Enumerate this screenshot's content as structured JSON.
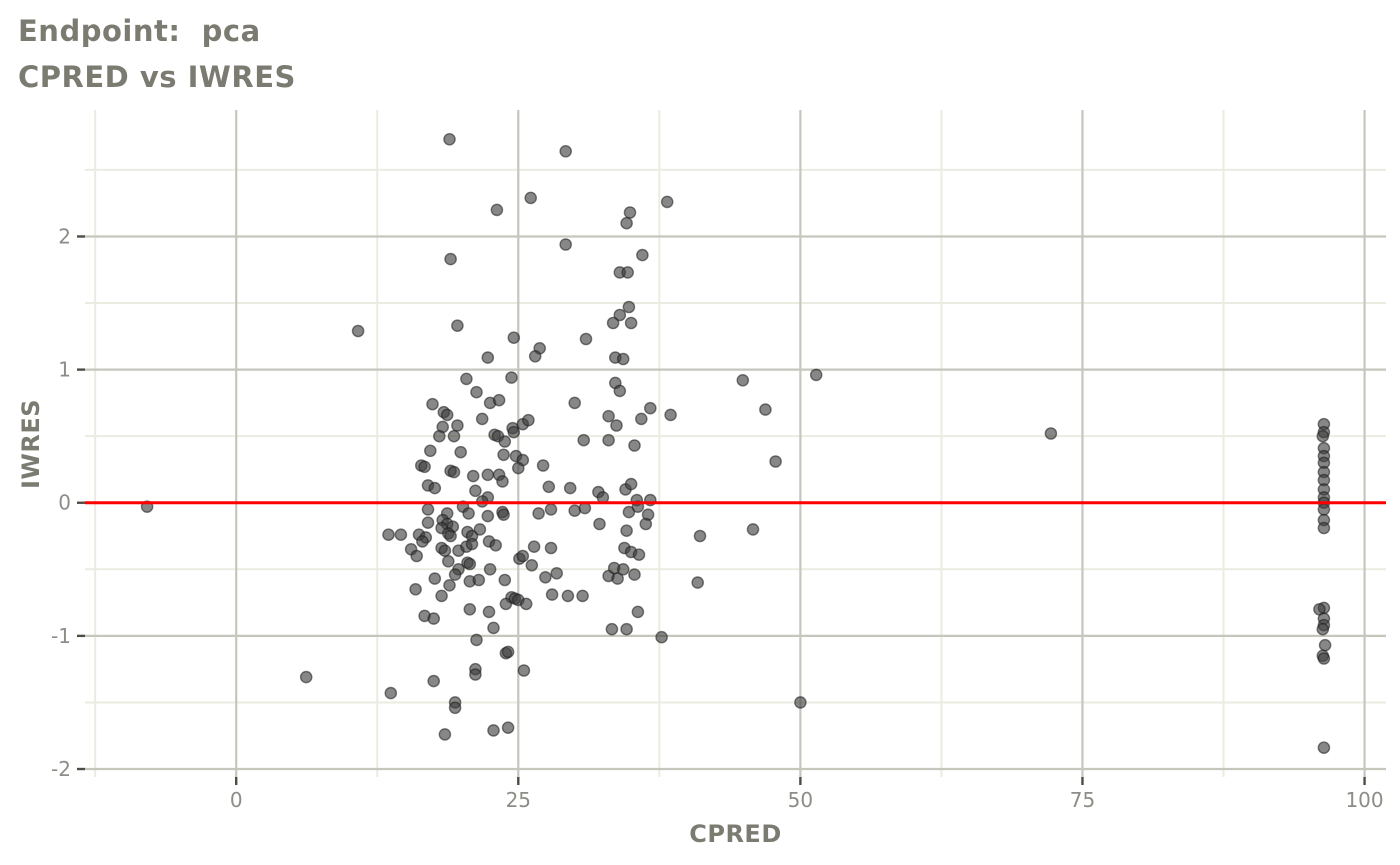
{
  "title": "Endpoint:  pca",
  "subtitle": "CPRED vs IWRES",
  "colors": {
    "background": "#ffffff",
    "title_text": "#7b7b72",
    "axis_label_text": "#7b7b72",
    "tick_label_text": "#8d8d87",
    "tick_mark": "#4d4d47",
    "grid_major": "#c6c6bd",
    "grid_minor": "#ebebe2",
    "point_fill": "#3d3d3d",
    "point_stroke": "#1c1c1c",
    "reference_line": "#ff0000"
  },
  "chart_data": {
    "type": "scatter",
    "title": "Endpoint:  pca",
    "subtitle": "CPRED vs IWRES",
    "xlabel": "CPRED",
    "ylabel": "IWRES",
    "xlim": [
      -13.4,
      101.9
    ],
    "ylim": [
      -2.06,
      2.95
    ],
    "grid": true,
    "legend_position": "none",
    "x_major_ticks": [
      0,
      25,
      50,
      75,
      100
    ],
    "x_tick_labels": [
      "0",
      "25",
      "50",
      "75",
      "100"
    ],
    "x_minor_ticks": [
      -12.5,
      12.5,
      37.5,
      62.5,
      87.5
    ],
    "y_major_ticks": [
      -2,
      -1,
      0,
      1,
      2
    ],
    "y_tick_labels": [
      "-2",
      "-1",
      "0",
      "1",
      "2"
    ],
    "y_minor_ticks": [
      -1.5,
      -0.5,
      0.5,
      1.5,
      2.5
    ],
    "reference_line": {
      "y": 0
    },
    "points": [
      [
        18.9,
        2.73
      ],
      [
        29.2,
        2.64
      ],
      [
        26.1,
        2.29
      ],
      [
        23.1,
        2.2
      ],
      [
        34.9,
        2.18
      ],
      [
        34.6,
        2.1
      ],
      [
        38.2,
        2.26
      ],
      [
        29.2,
        1.94
      ],
      [
        36.0,
        1.86
      ],
      [
        19.0,
        1.83
      ],
      [
        34.0,
        1.73
      ],
      [
        34.7,
        1.73
      ],
      [
        34.8,
        1.47
      ],
      [
        34.0,
        1.41
      ],
      [
        33.4,
        1.35
      ],
      [
        35.0,
        1.35
      ],
      [
        19.6,
        1.33
      ],
      [
        10.8,
        1.29
      ],
      [
        24.6,
        1.24
      ],
      [
        31.0,
        1.23
      ],
      [
        26.9,
        1.16
      ],
      [
        26.5,
        1.1
      ],
      [
        22.3,
        1.09
      ],
      [
        33.6,
        1.09
      ],
      [
        34.3,
        1.08
      ],
      [
        20.4,
        0.93
      ],
      [
        24.4,
        0.94
      ],
      [
        21.3,
        0.83
      ],
      [
        33.6,
        0.9
      ],
      [
        34.0,
        0.84
      ],
      [
        22.5,
        0.75
      ],
      [
        23.3,
        0.77
      ],
      [
        17.4,
        0.74
      ],
      [
        18.4,
        0.68
      ],
      [
        18.7,
        0.66
      ],
      [
        21.8,
        0.63
      ],
      [
        30.0,
        0.75
      ],
      [
        33.0,
        0.65
      ],
      [
        36.7,
        0.71
      ],
      [
        35.9,
        0.63
      ],
      [
        38.5,
        0.66
      ],
      [
        33.7,
        0.58
      ],
      [
        18.3,
        0.57
      ],
      [
        19.6,
        0.58
      ],
      [
        25.4,
        0.59
      ],
      [
        25.9,
        0.62
      ],
      [
        24.5,
        0.56
      ],
      [
        22.9,
        0.51
      ],
      [
        23.2,
        0.5
      ],
      [
        18.0,
        0.5
      ],
      [
        19.3,
        0.5
      ],
      [
        23.8,
        0.46
      ],
      [
        24.6,
        0.53
      ],
      [
        30.8,
        0.47
      ],
      [
        33.0,
        0.47
      ],
      [
        35.3,
        0.43
      ],
      [
        17.2,
        0.39
      ],
      [
        19.9,
        0.38
      ],
      [
        23.7,
        0.36
      ],
      [
        24.8,
        0.35
      ],
      [
        25.4,
        0.32
      ],
      [
        27.2,
        0.28
      ],
      [
        16.4,
        0.28
      ],
      [
        16.7,
        0.27
      ],
      [
        19.0,
        0.24
      ],
      [
        19.3,
        0.23
      ],
      [
        21.0,
        0.2
      ],
      [
        22.3,
        0.21
      ],
      [
        23.3,
        0.21
      ],
      [
        23.6,
        0.16
      ],
      [
        25.0,
        0.26
      ],
      [
        27.7,
        0.12
      ],
      [
        29.6,
        0.11
      ],
      [
        17.0,
        0.13
      ],
      [
        17.6,
        0.11
      ],
      [
        21.2,
        0.09
      ],
      [
        22.3,
        0.04
      ],
      [
        21.8,
        0.01
      ],
      [
        32.1,
        0.08
      ],
      [
        32.5,
        0.04
      ],
      [
        34.5,
        0.1
      ],
      [
        35.0,
        0.14
      ],
      [
        35.5,
        0.02
      ],
      [
        36.7,
        0.02
      ],
      [
        17.0,
        -0.05
      ],
      [
        18.7,
        -0.08
      ],
      [
        20.1,
        -0.03
      ],
      [
        20.6,
        -0.08
      ],
      [
        22.3,
        -0.1
      ],
      [
        23.6,
        -0.07
      ],
      [
        23.7,
        -0.09
      ],
      [
        26.8,
        -0.08
      ],
      [
        27.9,
        -0.05
      ],
      [
        30.0,
        -0.06
      ],
      [
        30.9,
        -0.04
      ],
      [
        34.8,
        -0.07
      ],
      [
        35.6,
        -0.03
      ],
      [
        36.5,
        -0.09
      ],
      [
        17.0,
        -0.15
      ],
      [
        18.3,
        -0.13
      ],
      [
        18.7,
        -0.16
      ],
      [
        32.2,
        -0.16
      ],
      [
        36.3,
        -0.16
      ],
      [
        13.5,
        -0.24
      ],
      [
        14.6,
        -0.24
      ],
      [
        16.2,
        -0.24
      ],
      [
        16.8,
        -0.26
      ],
      [
        16.5,
        -0.29
      ],
      [
        18.2,
        -0.19
      ],
      [
        19.2,
        -0.18
      ],
      [
        18.8,
        -0.23
      ],
      [
        19.0,
        -0.25
      ],
      [
        20.5,
        -0.22
      ],
      [
        20.9,
        -0.25
      ],
      [
        21.6,
        -0.2
      ],
      [
        18.2,
        -0.34
      ],
      [
        18.5,
        -0.36
      ],
      [
        19.7,
        -0.36
      ],
      [
        20.4,
        -0.33
      ],
      [
        20.9,
        -0.31
      ],
      [
        22.4,
        -0.29
      ],
      [
        23.0,
        -0.32
      ],
      [
        26.4,
        -0.33
      ],
      [
        27.9,
        -0.34
      ],
      [
        15.5,
        -0.35
      ],
      [
        16.0,
        -0.4
      ],
      [
        25.1,
        -0.42
      ],
      [
        25.4,
        -0.4
      ],
      [
        18.8,
        -0.44
      ],
      [
        20.5,
        -0.45
      ],
      [
        19.7,
        -0.5
      ],
      [
        20.7,
        -0.46
      ],
      [
        22.5,
        -0.5
      ],
      [
        26.2,
        -0.47
      ],
      [
        27.4,
        -0.56
      ],
      [
        28.4,
        -0.53
      ],
      [
        17.6,
        -0.57
      ],
      [
        19.4,
        -0.54
      ],
      [
        20.7,
        -0.59
      ],
      [
        21.5,
        -0.58
      ],
      [
        23.8,
        -0.58
      ],
      [
        33.0,
        -0.55
      ],
      [
        33.8,
        -0.57
      ],
      [
        33.5,
        -0.49
      ],
      [
        34.3,
        -0.5
      ],
      [
        35.3,
        -0.54
      ],
      [
        34.4,
        -0.34
      ],
      [
        35.0,
        -0.37
      ],
      [
        35.7,
        -0.39
      ],
      [
        34.6,
        -0.21
      ],
      [
        15.9,
        -0.65
      ],
      [
        18.2,
        -0.7
      ],
      [
        18.9,
        -0.62
      ],
      [
        24.4,
        -0.71
      ],
      [
        24.7,
        -0.72
      ],
      [
        25.0,
        -0.73
      ],
      [
        25.7,
        -0.76
      ],
      [
        23.9,
        -0.76
      ],
      [
        28.0,
        -0.69
      ],
      [
        29.4,
        -0.7
      ],
      [
        30.7,
        -0.7
      ],
      [
        20.7,
        -0.8
      ],
      [
        22.4,
        -0.82
      ],
      [
        16.7,
        -0.85
      ],
      [
        17.5,
        -0.87
      ],
      [
        22.8,
        -0.94
      ],
      [
        35.6,
        -0.82
      ],
      [
        33.3,
        -0.95
      ],
      [
        34.6,
        -0.95
      ],
      [
        37.7,
        -1.01
      ],
      [
        21.3,
        -1.03
      ],
      [
        23.9,
        -1.13
      ],
      [
        24.1,
        -1.12
      ],
      [
        21.2,
        -1.25
      ],
      [
        21.2,
        -1.29
      ],
      [
        25.5,
        -1.26
      ],
      [
        17.5,
        -1.34
      ],
      [
        13.7,
        -1.43
      ],
      [
        19.4,
        -1.5
      ],
      [
        19.4,
        -1.54
      ],
      [
        18.5,
        -1.74
      ],
      [
        22.8,
        -1.71
      ],
      [
        24.1,
        -1.69
      ],
      [
        44.9,
        0.92
      ],
      [
        51.4,
        0.96
      ],
      [
        46.9,
        0.7
      ],
      [
        72.2,
        0.52
      ],
      [
        47.8,
        0.31
      ],
      [
        41.1,
        -0.25
      ],
      [
        45.8,
        -0.2
      ],
      [
        40.9,
        -0.6
      ],
      [
        50.0,
        -1.5
      ],
      [
        -7.9,
        -0.03
      ],
      [
        6.2,
        -1.31
      ],
      [
        96.4,
        0.59
      ],
      [
        96.4,
        0.53
      ],
      [
        96.3,
        0.5
      ],
      [
        96.4,
        0.41
      ],
      [
        96.4,
        0.35
      ],
      [
        96.4,
        0.3
      ],
      [
        96.4,
        0.23
      ],
      [
        96.4,
        0.17
      ],
      [
        96.4,
        0.1
      ],
      [
        96.4,
        0.04
      ],
      [
        96.4,
        0.0
      ],
      [
        96.4,
        -0.05
      ],
      [
        96.4,
        -0.13
      ],
      [
        96.4,
        -0.19
      ],
      [
        96.4,
        -0.79
      ],
      [
        96.0,
        -0.8
      ],
      [
        96.4,
        -0.87
      ],
      [
        96.4,
        -0.92
      ],
      [
        96.3,
        -0.95
      ],
      [
        96.5,
        -1.07
      ],
      [
        96.3,
        -1.15
      ],
      [
        96.4,
        -1.17
      ],
      [
        96.4,
        -1.84
      ]
    ]
  }
}
